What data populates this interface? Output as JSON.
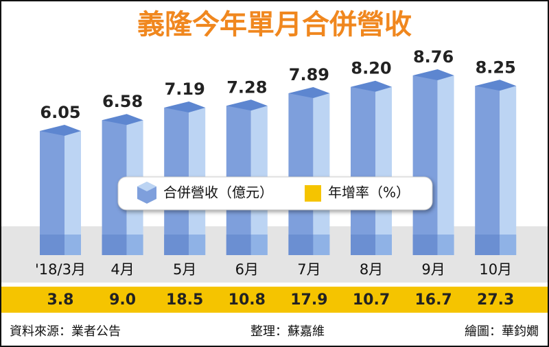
{
  "chart_data": {
    "type": "bar3d",
    "title": "義隆今年單月合併營收",
    "categories": [
      "'18/3月",
      "4月",
      "5月",
      "6月",
      "7月",
      "8月",
      "9月",
      "10月"
    ],
    "series": [
      {
        "name": "合併營收（億元）",
        "color": "#7e9fdc",
        "values": [
          6.05,
          6.58,
          7.19,
          7.28,
          7.89,
          8.2,
          8.76,
          8.25
        ],
        "value_labels": [
          "6.05",
          "6.58",
          "7.19",
          "7.28",
          "7.89",
          "8.20",
          "8.76",
          "8.25"
        ]
      },
      {
        "name": "年增率（%）",
        "color": "#f5c400",
        "values": [
          3.8,
          9.0,
          18.5,
          10.8,
          17.9,
          10.7,
          16.7,
          27.3
        ],
        "value_labels": [
          "3.8",
          "9.0",
          "18.5",
          "10.8",
          "17.9",
          "10.7",
          "16.7",
          "27.3"
        ]
      }
    ],
    "source": "資料來源：業者公告",
    "editor": "整理：蘇嘉維",
    "graphics": "繪圖：華鈞嫺"
  }
}
